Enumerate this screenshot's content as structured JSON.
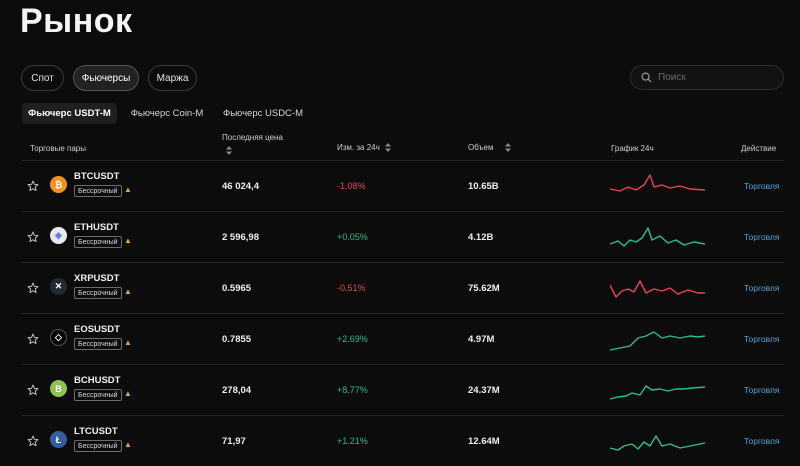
{
  "page": {
    "title": "Рынок"
  },
  "market_tabs": [
    {
      "label": "Спот",
      "active": false
    },
    {
      "label": "Фьючерсы",
      "active": true
    },
    {
      "label": "Маржа",
      "active": false
    }
  ],
  "search": {
    "placeholder": "Поиск",
    "value": ""
  },
  "sub_tabs": [
    {
      "label": "Фьючерс USDT-M",
      "active": true
    },
    {
      "label": "Фьючерс Coin-M",
      "active": false
    },
    {
      "label": "Фьючерс USDC-M",
      "active": false
    }
  ],
  "columns": {
    "pair": "Торговые пары",
    "price": "Последняя цена",
    "change": "Изм. за 24ч",
    "volume": "Объем",
    "chart": "График 24ч",
    "action": "Действие"
  },
  "colors": {
    "up": "#2ebd85",
    "down": "#e2465b",
    "link": "#4fa3d8"
  },
  "rows": [
    {
      "symbol": "BTCUSDT",
      "icon": "bitcoin-icon",
      "coin_color": "#f7931a",
      "badge": "Бессрочный",
      "price": "46 024,4",
      "change": "-1.08%",
      "trend": "down",
      "volume": "10.65B",
      "action": "Торговля"
    },
    {
      "symbol": "ETHUSDT",
      "icon": "ethereum-icon",
      "coin_color": "#e8e8f0",
      "badge": "Бессрочный",
      "price": "2 596,98",
      "change": "+0.05%",
      "trend": "up",
      "volume": "4.12B",
      "action": "Торговля"
    },
    {
      "symbol": "XRPUSDT",
      "icon": "xrp-icon",
      "coin_color": "#23292f",
      "badge": "Бессрочный",
      "price": "0.5965",
      "change": "-0.51%",
      "trend": "down",
      "volume": "75.62M",
      "action": "Торговля"
    },
    {
      "symbol": "EOSUSDT",
      "icon": "eos-icon",
      "coin_color": "#000000",
      "badge": "Бессрочный",
      "price": "0.7855",
      "change": "+2.69%",
      "trend": "up",
      "volume": "4.97M",
      "action": "Торговля"
    },
    {
      "symbol": "BCHUSDT",
      "icon": "bitcoin-cash-icon",
      "coin_color": "#8dc351",
      "badge": "Бессрочный",
      "price": "278,04",
      "change": "+8.77%",
      "trend": "up",
      "volume": "24.37M",
      "action": "Торговля"
    },
    {
      "symbol": "LTCUSDT",
      "icon": "litecoin-icon",
      "coin_color": "#345d9d",
      "badge": "Бессрочный",
      "price": "71,97",
      "change": "+1.21%",
      "trend": "up",
      "volume": "12.64M",
      "action": "Торговля"
    }
  ]
}
